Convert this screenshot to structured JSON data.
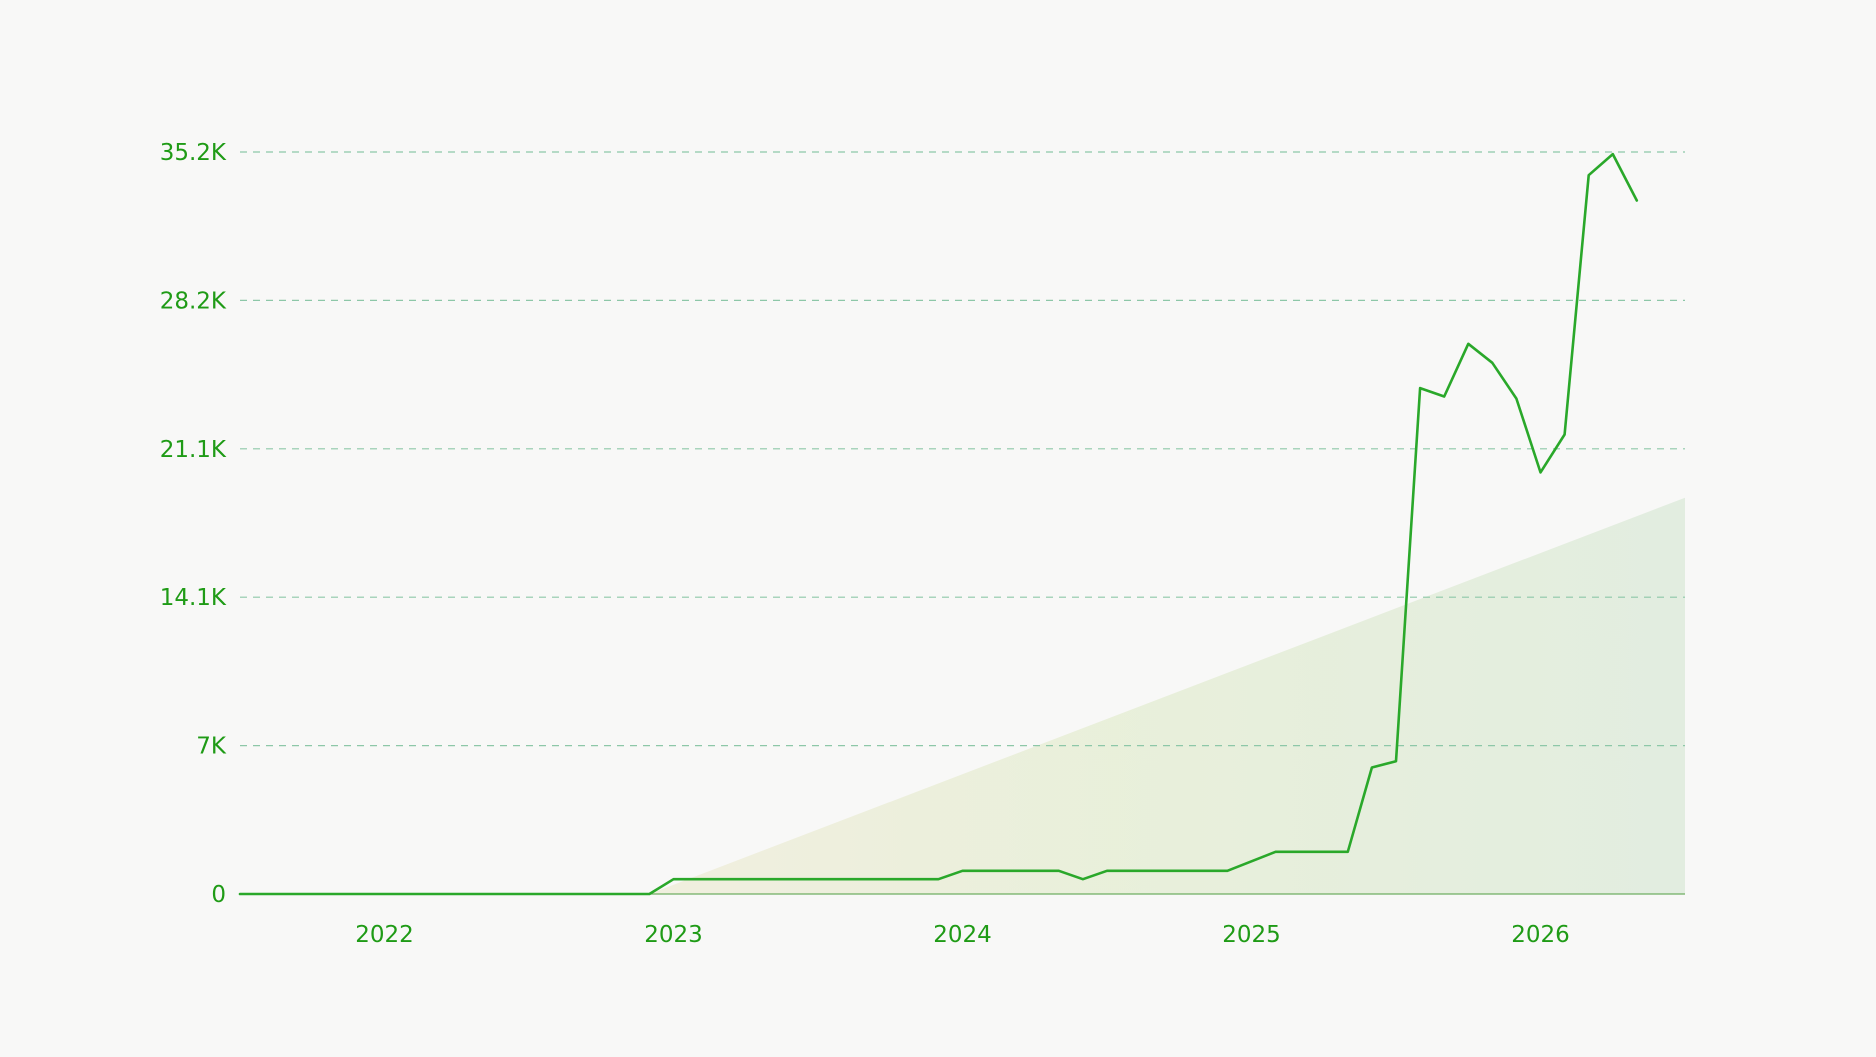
{
  "chart_data": {
    "type": "line",
    "title": "",
    "xlabel": "",
    "ylabel": "",
    "x_ticks": [
      "2022",
      "2023",
      "2024",
      "2025",
      "2026"
    ],
    "y_ticks": [
      "0",
      "7K",
      "14.1K",
      "21.1K",
      "28.2K",
      "35.2K"
    ],
    "y_tick_values": [
      0,
      7040,
      14080,
      21120,
      28160,
      35200
    ],
    "ylim": [
      0,
      35200
    ],
    "xlim": [
      "2021-07",
      "2026-07"
    ],
    "grid": "horizontal dashed",
    "legend": "none",
    "series": [
      {
        "color": "#2aa82a",
        "points": [
          {
            "x": "2021-07",
            "y": 0
          },
          {
            "x": "2022-01",
            "y": 0
          },
          {
            "x": "2022-06",
            "y": 0
          },
          {
            "x": "2022-12",
            "y": 0
          },
          {
            "x": "2023-01",
            "y": 700
          },
          {
            "x": "2023-06",
            "y": 700
          },
          {
            "x": "2023-12",
            "y": 700
          },
          {
            "x": "2024-01",
            "y": 1100
          },
          {
            "x": "2024-05",
            "y": 1100
          },
          {
            "x": "2024-06",
            "y": 700
          },
          {
            "x": "2024-07",
            "y": 1100
          },
          {
            "x": "2024-12",
            "y": 1100
          },
          {
            "x": "2025-02",
            "y": 2000
          },
          {
            "x": "2025-05",
            "y": 2000
          },
          {
            "x": "2025-06",
            "y": 6000
          },
          {
            "x": "2025-07",
            "y": 6300
          },
          {
            "x": "2025-08",
            "y": 24000
          },
          {
            "x": "2025-09",
            "y": 23600
          },
          {
            "x": "2025-10",
            "y": 26100
          },
          {
            "x": "2025-11",
            "y": 25200
          },
          {
            "x": "2025-12",
            "y": 23500
          },
          {
            "x": "2026-01",
            "y": 20000
          },
          {
            "x": "2026-02",
            "y": 21800
          },
          {
            "x": "2026-03",
            "y": 34100
          },
          {
            "x": "2026-04",
            "y": 35100
          },
          {
            "x": "2026-05",
            "y": 32900
          }
        ]
      },
      {
        "type": "area",
        "color": "#e3eedb",
        "points": [
          {
            "x": "2022-12",
            "y": 0
          },
          {
            "x": "2026-07",
            "y": 18800
          }
        ]
      }
    ]
  }
}
